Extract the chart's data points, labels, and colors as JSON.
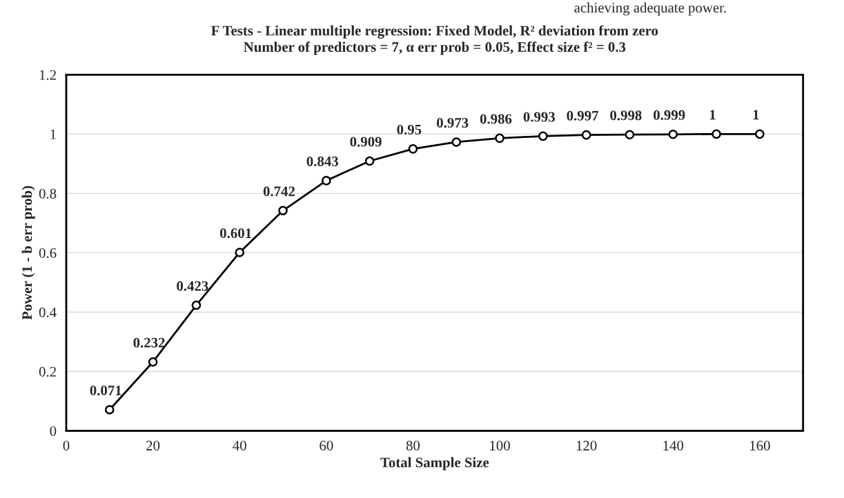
{
  "chart_data": {
    "type": "line",
    "title": "F Tests - Linear multiple regression: Fixed Model, R² deviation from zero\nNumber of predictors = 7, α err prob = 0.05, Effect size f² = 0.3",
    "xlabel": "Total Sample Size",
    "ylabel": "Power (1 - b err prob)",
    "annotations": [
      "achieving adequate power."
    ],
    "x": [
      10,
      20,
      30,
      40,
      50,
      60,
      70,
      80,
      90,
      100,
      110,
      120,
      130,
      140,
      150,
      160
    ],
    "series": [
      {
        "color": "#000000",
        "values": [
          0.071,
          0.232,
          0.423,
          0.601,
          0.742,
          0.843,
          0.909,
          0.95,
          0.973,
          0.986,
          0.993,
          0.997,
          0.998,
          0.999,
          1,
          1
        ]
      }
    ],
    "xlim": [
      0,
      170
    ],
    "xticks": [
      0,
      20,
      40,
      60,
      80,
      100,
      120,
      140,
      160
    ],
    "ylim": [
      0,
      1.2
    ],
    "yticks": [
      0,
      0.2,
      0.4,
      0.6,
      0.8,
      1,
      1.2
    ],
    "grid": "y",
    "marker": "circle",
    "line_style": "solid",
    "data_labels": true,
    "legend": false
  }
}
